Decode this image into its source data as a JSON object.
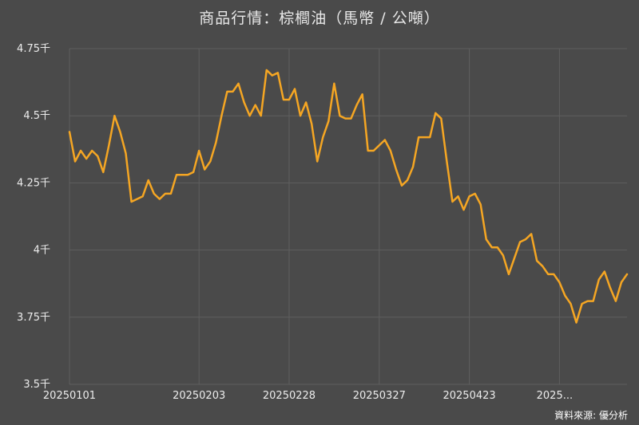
{
  "chart_data": {
    "type": "line",
    "title": "商品行情：棕櫚油（馬幣 / 公噸）",
    "xlabel": "",
    "ylabel": "",
    "ylim": [
      3500,
      4750
    ],
    "y_ticks": [
      3500,
      3750,
      4000,
      4250,
      4500,
      4750
    ],
    "y_tick_labels": [
      "3.5千",
      "3.75千",
      "4千",
      "4.25千",
      "4.5千",
      "4.75千"
    ],
    "x_tick_labels": [
      "20250101",
      "20250203",
      "20250228",
      "20250327",
      "20250423",
      "2025..."
    ],
    "x_tick_index": [
      0,
      23,
      39,
      55,
      71,
      87
    ],
    "grid": true,
    "line_color": "#f5a623",
    "values": [
      4440,
      4330,
      4370,
      4340,
      4370,
      4350,
      4290,
      4390,
      4500,
      4440,
      4360,
      4180,
      4190,
      4200,
      4260,
      4210,
      4190,
      4210,
      4210,
      4280,
      4280,
      4280,
      4290,
      4370,
      4300,
      4330,
      4400,
      4500,
      4590,
      4590,
      4620,
      4550,
      4500,
      4540,
      4500,
      4670,
      4650,
      4660,
      4560,
      4560,
      4600,
      4500,
      4550,
      4470,
      4330,
      4420,
      4480,
      4620,
      4500,
      4490,
      4490,
      4540,
      4580,
      4370,
      4370,
      4390,
      4410,
      4370,
      4300,
      4240,
      4260,
      4310,
      4420,
      4420,
      4420,
      4510,
      4490,
      4330,
      4180,
      4200,
      4150,
      4200,
      4210,
      4170,
      4040,
      4010,
      4010,
      3980,
      3910,
      3970,
      4030,
      4040,
      4060,
      3960,
      3940,
      3910,
      3910,
      3880,
      3830,
      3800,
      3730,
      3800,
      3810,
      3810,
      3890,
      3920,
      3860,
      3810,
      3880,
      3910
    ]
  },
  "source_note": "資料來源: 優分析"
}
